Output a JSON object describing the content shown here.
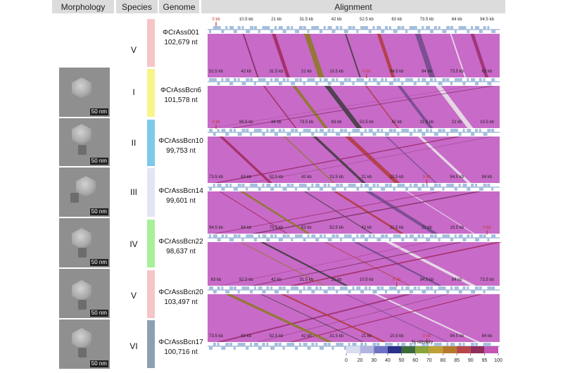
{
  "headers": {
    "morphology": "Morphology",
    "species": "Species",
    "genome": "Genome",
    "alignment": "Alignment"
  },
  "rows": [
    {
      "species": "V",
      "name": "ΦCrAss001",
      "length": "102,679 nt",
      "color": "#f6c5c8"
    },
    {
      "species": "I",
      "name": "ΦCrAssBcn6",
      "length": "101,578 nt",
      "color": "#f7f58a"
    },
    {
      "species": "II",
      "name": "ΦCrAssBcn10",
      "length": "99,753 nt",
      "color": "#7ec9ea"
    },
    {
      "species": "III",
      "name": "ΦCrAssBcn14",
      "length": "99,601 nt",
      "color": "#e2e6f3"
    },
    {
      "species": "IV",
      "name": "ΦCrAssBcn22",
      "length": "98,637 nt",
      "color": "#a8ef9a"
    },
    {
      "species": "V",
      "name": "ΦCrAssBcn20",
      "length": "103,497 nt",
      "color": "#f6c5c8"
    },
    {
      "species": "VI",
      "name": "ΦCrAssBcn17",
      "length": "100,716 nt",
      "color": "#8da0b3"
    }
  ],
  "micrographs": [
    {
      "scale": "50 nm"
    },
    {
      "scale": "50 nm"
    },
    {
      "scale": "50 nm"
    },
    {
      "scale": "50 nm"
    },
    {
      "scale": "50 nm"
    },
    {
      "scale": "50 nm"
    }
  ],
  "tracks": [
    {
      "labels": [
        "0 kb",
        "10.5 kb",
        "21 kb",
        "31.5 kb",
        "42 kb",
        "52.5 kb",
        "63 kb",
        "73.5 kb",
        "84 kb",
        "94.5 kb"
      ]
    },
    {
      "labels": [
        "52.5 kb",
        "42 kb",
        "31.5 kb",
        "21 kb",
        "10.5 kb",
        "0 kb",
        "94.5 kb",
        "84 kb",
        "73.5 kb",
        "63 kb"
      ]
    },
    {
      "labels": [
        "0 kb",
        "94.5 kb",
        "84 kb",
        "73.5 kb",
        "63 kb",
        "52.5 kb",
        "42 kb",
        "31.5 kb",
        "21 kb",
        "10.5 kb"
      ]
    },
    {
      "labels": [
        "73.5 kb",
        "63 kb",
        "52.5 kb",
        "42 kb",
        "31.5 kb",
        "21 kb",
        "10.5 kb",
        "0 kb",
        "94.5 kb",
        "84 kb"
      ]
    },
    {
      "labels": [
        "94.5 kb",
        "84 kb",
        "73.5 kb",
        "63 kb",
        "52.5 kb",
        "42 kb",
        "31.5 kb",
        "21 kb",
        "10.5 kb",
        "0 kb"
      ]
    },
    {
      "labels": [
        "63 kb",
        "52.5 kb",
        "42 kb",
        "31.5 kb",
        "21 kb",
        "10.5 kb",
        "0 kb",
        "94.5 kb",
        "84 kb",
        "73.5 kb"
      ]
    },
    {
      "labels": [
        "73.5 kb",
        "63 kb",
        "52.5 kb",
        "42 kb",
        "31.5 kb",
        "21 kb",
        "10.5 kb",
        "0 kb",
        "94.5 kb",
        "84 kb"
      ]
    }
  ],
  "legend": {
    "title": "%-identity",
    "ticks": [
      "0",
      "20",
      "30",
      "40",
      "50",
      "60",
      "70",
      "80",
      "85",
      "90",
      "95",
      "100"
    ],
    "colors": [
      "#d9ddf0",
      "#b4b4e0",
      "#6e72c2",
      "#2a2f8a",
      "#3c6a3a",
      "#8aa33a",
      "#c0a035",
      "#b47a2a",
      "#b8454a",
      "#8e2d5a",
      "#c455b4"
    ]
  },
  "accent": {
    "match": "#c86ac8",
    "gene": "#a6bedd",
    "origin": "#c0392b"
  }
}
